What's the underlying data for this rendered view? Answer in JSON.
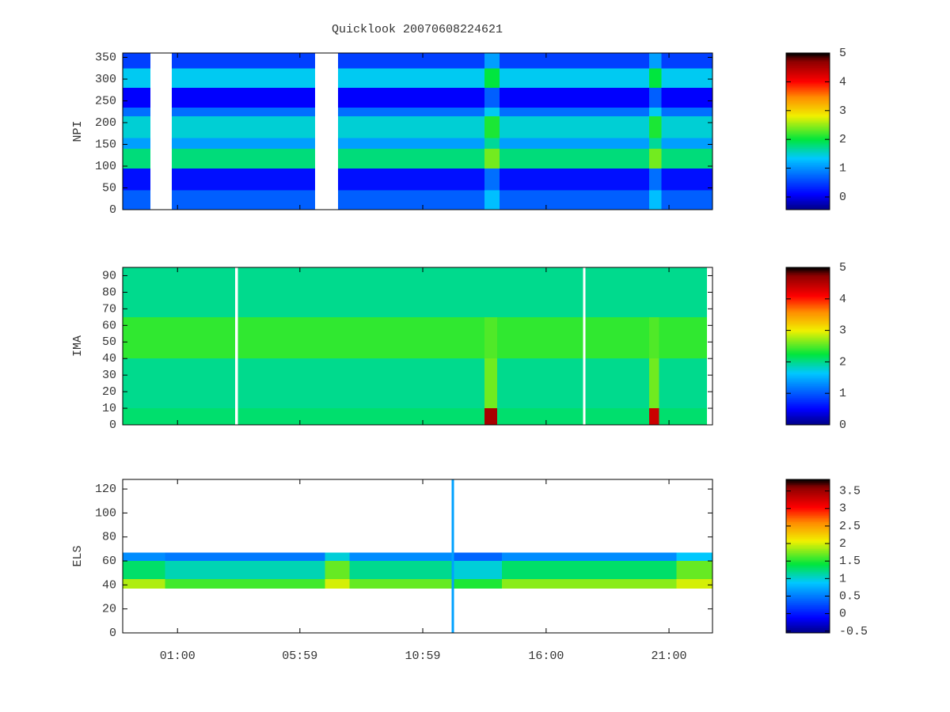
{
  "chart_data": [
    {
      "type": "heatmap",
      "title": "Quicklook 20070608224621",
      "ylabel": "NPI",
      "ylim": [
        0,
        360
      ],
      "yticks": [
        0,
        50,
        100,
        150,
        200,
        250,
        300,
        350
      ],
      "x_edges": [
        -1.23,
        -0.1,
        0.77,
        6.6,
        7.53,
        13.5,
        14.1,
        20.2,
        20.7,
        22.77
      ],
      "y_edges": [
        0,
        45,
        95,
        140,
        165,
        215,
        235,
        280,
        325,
        360
      ],
      "z": [
        [
          0.7,
          null,
          0.7,
          null,
          0.7,
          1.3,
          0.7,
          1.3,
          0.7
        ],
        [
          0.2,
          null,
          0.2,
          null,
          0.2,
          0.8,
          0.2,
          0.8,
          0.2
        ],
        [
          1.8,
          null,
          1.8,
          null,
          1.8,
          2.4,
          1.8,
          2.4,
          1.8
        ],
        [
          1.1,
          null,
          1.1,
          null,
          1.1,
          1.7,
          1.1,
          1.7,
          1.1
        ],
        [
          1.5,
          null,
          1.5,
          null,
          1.5,
          2.1,
          1.5,
          2.1,
          1.5
        ],
        [
          0.8,
          null,
          0.8,
          null,
          0.8,
          1.4,
          0.8,
          1.4,
          0.8
        ],
        [
          0.1,
          null,
          0.1,
          null,
          0.1,
          0.7,
          0.1,
          0.7,
          0.1
        ],
        [
          1.4,
          null,
          1.4,
          null,
          1.4,
          2.0,
          1.4,
          2.0,
          1.4
        ],
        [
          0.5,
          null,
          0.5,
          null,
          0.5,
          1.1,
          0.5,
          1.1,
          0.5
        ]
      ],
      "clim": [
        -0.44,
        5
      ],
      "cticks": [
        0,
        1,
        2,
        3,
        4,
        5
      ]
    },
    {
      "type": "heatmap",
      "ylabel": "IMA",
      "ylim": [
        0,
        95
      ],
      "yticks": [
        0,
        10,
        20,
        30,
        40,
        50,
        60,
        70,
        80,
        90
      ],
      "x_edges": [
        -1.23,
        3.35,
        3.45,
        13.5,
        14.0,
        17.5,
        17.6,
        20.2,
        20.6,
        22.55
      ],
      "y_edges": [
        0,
        10,
        40,
        65,
        95
      ],
      "z": [
        [
          2.1,
          null,
          2.1,
          4.6,
          2.1,
          null,
          2.1,
          4.4,
          2.1
        ],
        [
          2.0,
          null,
          2.0,
          2.6,
          2.0,
          null,
          2.0,
          2.6,
          2.0
        ],
        [
          2.4,
          null,
          2.4,
          2.5,
          2.4,
          null,
          2.4,
          2.5,
          2.4
        ],
        [
          2.0,
          null,
          2.0,
          2.0,
          2.0,
          null,
          2.0,
          2.0,
          2.0
        ]
      ],
      "clim": [
        0,
        5
      ],
      "cticks": [
        0,
        1,
        2,
        3,
        4,
        5
      ]
    },
    {
      "type": "heatmap",
      "ylabel": "ELS",
      "ylim": [
        0,
        128
      ],
      "yticks": [
        0,
        20,
        40,
        60,
        80,
        100,
        120
      ],
      "xlim": [
        -1.23,
        22.77
      ],
      "xticks": [
        {
          "value": 1,
          "label": "01:00"
        },
        {
          "value": 5.98,
          "label": "05:59"
        },
        {
          "value": 10.98,
          "label": "10:59"
        },
        {
          "value": 16,
          "label": "16:00"
        },
        {
          "value": 21,
          "label": "21:00"
        }
      ],
      "x_edges": [
        -1.23,
        0.5,
        7,
        8,
        12.15,
        12.25,
        14.2,
        21.3,
        22.77
      ],
      "y_edges": [
        0,
        37,
        45,
        60,
        67,
        128
      ],
      "z": [
        [
          null,
          null,
          null,
          null,
          0.7,
          null,
          null,
          null
        ],
        [
          1.9,
          1.6,
          2.0,
          1.7,
          0.7,
          1.5,
          1.8,
          2.0
        ],
        [
          1.3,
          1.1,
          1.7,
          1.2,
          0.7,
          1.0,
          1.3,
          1.7
        ],
        [
          0.6,
          0.5,
          1.0,
          0.6,
          0.7,
          0.4,
          0.6,
          0.9
        ],
        [
          null,
          null,
          null,
          null,
          0.7,
          null,
          null,
          null
        ]
      ],
      "clim": [
        -0.55,
        3.83
      ],
      "cticks": [
        -0.5,
        0,
        0.5,
        1,
        1.5,
        2,
        2.5,
        3,
        3.5
      ]
    }
  ]
}
